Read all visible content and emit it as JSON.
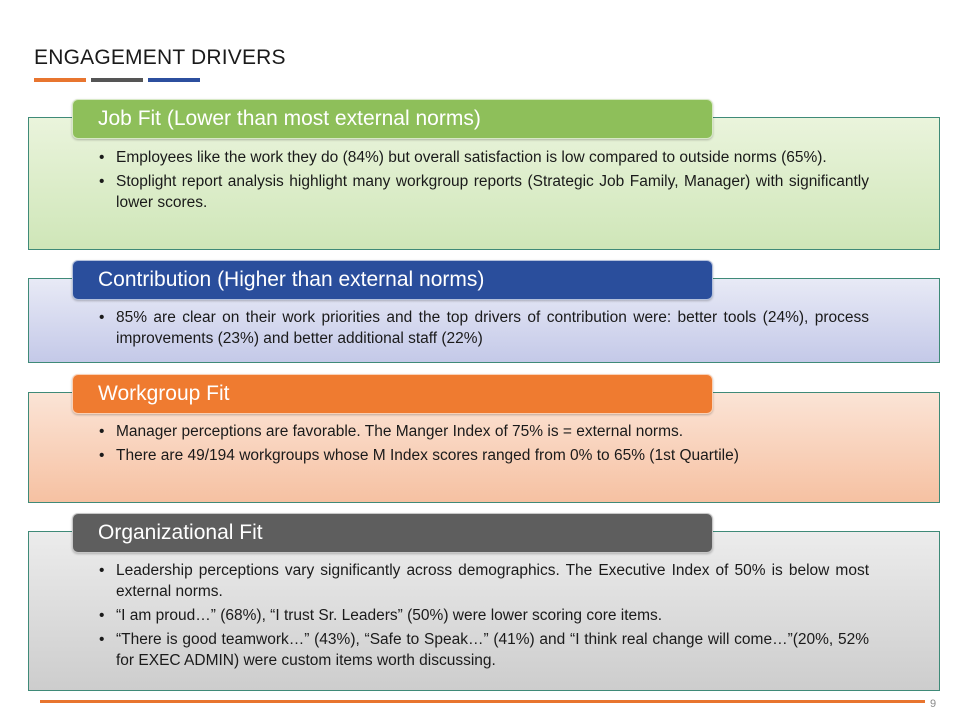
{
  "slide": {
    "title": "ENGAGEMENT DRIVERS",
    "page_number": "9",
    "accent_colors": [
      "#e8752f",
      "#555555",
      "#2c4f9e"
    ],
    "footer_line_color": "#e8752f"
  },
  "sections": [
    {
      "heading": "Job Fit (Lower than most external norms)",
      "header_color": "#8ebf5a",
      "background": [
        "#eaf4dc",
        "#cfe6b8"
      ],
      "bullets": [
        "Employees like the work they do (84%) but overall satisfaction is low compared to outside norms (65%).",
        "Stoplight report analysis highlight many workgroup reports (Strategic Job Family, Manager) with significantly lower scores."
      ]
    },
    {
      "heading": "Contribution (Higher than external norms)",
      "header_color": "#2a4e9c",
      "background": [
        "#e8eaf6",
        "#c4c9e8"
      ],
      "bullets": [
        "85% are clear on their work priorities and the top drivers of contribution were: better tools (24%), process improvements (23%) and better additional staff (22%)"
      ]
    },
    {
      "heading": "Workgroup Fit",
      "header_color": "#ef7b30",
      "background": [
        "#fbe4d6",
        "#f6c1a2"
      ],
      "bullets": [
        "Manager perceptions are favorable. The Manger Index of 75% is = external norms.",
        "There are 49/194 workgroups whose M Index scores ranged from 0% to 65% (1st Quartile)"
      ]
    },
    {
      "heading": "Organizational Fit",
      "header_color": "#5e5e5e",
      "background": [
        "#ececec",
        "#cdcdcd"
      ],
      "bullets": [
        "Leadership perceptions vary significantly across demographics. The Executive Index of 50% is below most external norms.",
        "“I am proud…” (68%), “I trust Sr. Leaders” (50%) were lower scoring core items.",
        "“There is good teamwork…” (43%), “Safe to Speak…” (41%) and “I think real change will come…”(20%, 52% for EXEC ADMIN) were custom items worth discussing."
      ]
    }
  ]
}
